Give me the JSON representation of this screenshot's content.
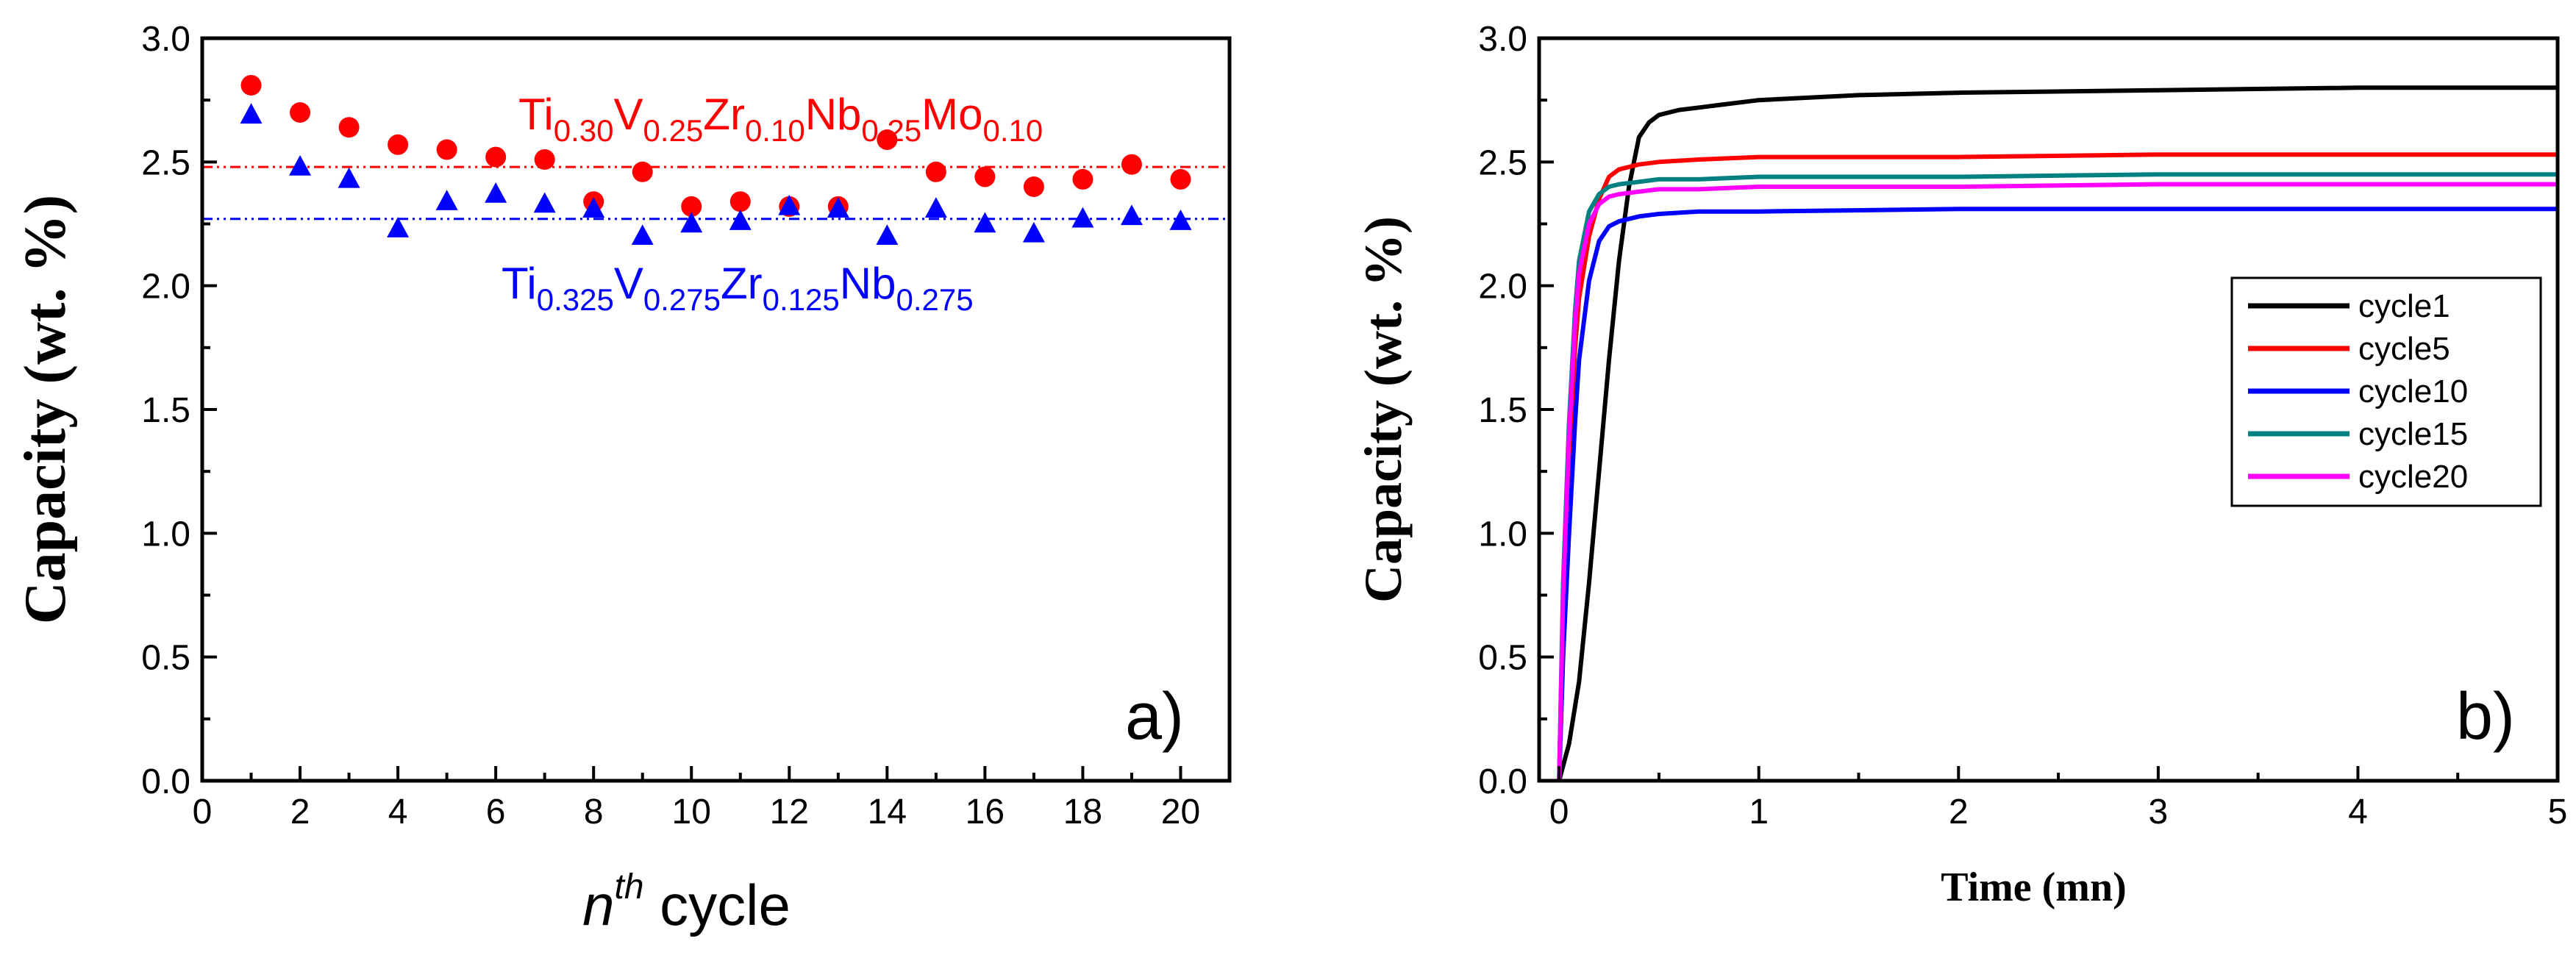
{
  "chart_data": [
    {
      "type": "scatter",
      "panel_label": "a)",
      "xlabel": "cycle",
      "xlabel_prefix": "n",
      "xlabel_sup": "th",
      "ylabel": "Capacity (wt. %)",
      "xlim": [
        0,
        21
      ],
      "ylim": [
        0,
        3.0
      ],
      "xticks": [
        0,
        2,
        4,
        6,
        8,
        10,
        12,
        14,
        16,
        18,
        20
      ],
      "yticks": [
        0.0,
        0.5,
        1.0,
        1.5,
        2.0,
        2.5,
        3.0
      ],
      "series": [
        {
          "name": "Ti0.30V0.25Zr0.10Nb0.25Mo0.10",
          "color": "#ff0000",
          "marker": "circle",
          "x": [
            1,
            2,
            3,
            4,
            5,
            6,
            7,
            8,
            9,
            10,
            11,
            12,
            13,
            14,
            15,
            16,
            17,
            18,
            19,
            20
          ],
          "y": [
            2.81,
            2.7,
            2.64,
            2.57,
            2.55,
            2.52,
            2.51,
            2.34,
            2.46,
            2.32,
            2.34,
            2.32,
            2.32,
            2.59,
            2.46,
            2.44,
            2.4,
            2.43,
            2.49,
            2.43
          ],
          "reference_line": 2.48,
          "label_parts": [
            {
              "text": "Ti",
              "sub": "0.30"
            },
            {
              "text": "V",
              "sub": "0.25"
            },
            {
              "text": "Zr",
              "sub": "0.10"
            },
            {
              "text": "Nb",
              "sub": "0.25"
            },
            {
              "text": "Mo",
              "sub": "0.10"
            }
          ]
        },
        {
          "name": "Ti0.325V0.275Zr0.125Nb0.275",
          "color": "#0000ff",
          "marker": "triangle",
          "x": [
            1,
            2,
            3,
            4,
            5,
            6,
            7,
            8,
            9,
            10,
            11,
            12,
            13,
            14,
            15,
            16,
            17,
            18,
            19,
            20
          ],
          "y": [
            2.69,
            2.48,
            2.43,
            2.23,
            2.34,
            2.37,
            2.33,
            2.31,
            2.2,
            2.25,
            2.26,
            2.32,
            2.31,
            2.2,
            2.31,
            2.25,
            2.21,
            2.27,
            2.28,
            2.26
          ],
          "reference_line": 2.27,
          "label_parts": [
            {
              "text": "Ti",
              "sub": "0.325"
            },
            {
              "text": "V",
              "sub": "0.275"
            },
            {
              "text": "Zr",
              "sub": "0.125"
            },
            {
              "text": "Nb",
              "sub": "0.275"
            }
          ]
        }
      ]
    },
    {
      "type": "line",
      "panel_label": "b)",
      "xlabel": "Time (mn)",
      "ylabel": "Capacity (wt. %)",
      "xlim": [
        -0.1,
        5
      ],
      "ylim": [
        0,
        3.0
      ],
      "xticks": [
        0,
        1,
        2,
        3,
        4,
        5
      ],
      "yticks": [
        0.0,
        0.5,
        1.0,
        1.5,
        2.0,
        2.5,
        3.0
      ],
      "legend_position": "right-center",
      "series": [
        {
          "name": "cycle1",
          "color": "#000000",
          "x": [
            0,
            0.05,
            0.1,
            0.15,
            0.2,
            0.25,
            0.3,
            0.35,
            0.4,
            0.45,
            0.5,
            0.6,
            0.7,
            0.8,
            1.0,
            1.5,
            2.0,
            3.0,
            4.0,
            5.0
          ],
          "y": [
            0,
            0.15,
            0.4,
            0.8,
            1.25,
            1.7,
            2.1,
            2.4,
            2.6,
            2.66,
            2.69,
            2.71,
            2.72,
            2.73,
            2.75,
            2.77,
            2.78,
            2.79,
            2.8,
            2.8
          ]
        },
        {
          "name": "cycle5",
          "color": "#ff0000",
          "x": [
            0,
            0.02,
            0.05,
            0.08,
            0.1,
            0.15,
            0.2,
            0.25,
            0.3,
            0.35,
            0.4,
            0.5,
            0.7,
            1.0,
            2.0,
            3.0,
            4.0,
            5.0
          ],
          "y": [
            0,
            0.7,
            1.3,
            1.75,
            1.95,
            2.2,
            2.35,
            2.44,
            2.47,
            2.48,
            2.49,
            2.5,
            2.51,
            2.52,
            2.52,
            2.53,
            2.53,
            2.53
          ]
        },
        {
          "name": "cycle10",
          "color": "#0000ff",
          "x": [
            0,
            0.02,
            0.05,
            0.08,
            0.1,
            0.15,
            0.2,
            0.25,
            0.3,
            0.4,
            0.5,
            0.7,
            1.0,
            2.0,
            3.0,
            4.0,
            5.0
          ],
          "y": [
            0,
            0.5,
            1.0,
            1.45,
            1.7,
            2.02,
            2.18,
            2.24,
            2.26,
            2.28,
            2.29,
            2.3,
            2.3,
            2.31,
            2.31,
            2.31,
            2.31
          ]
        },
        {
          "name": "cycle15",
          "color": "#008080",
          "x": [
            0,
            0.02,
            0.05,
            0.08,
            0.1,
            0.15,
            0.2,
            0.25,
            0.3,
            0.4,
            0.5,
            0.7,
            1.0,
            2.0,
            3.0,
            4.0,
            5.0
          ],
          "y": [
            0,
            0.8,
            1.45,
            1.9,
            2.1,
            2.3,
            2.37,
            2.4,
            2.41,
            2.42,
            2.43,
            2.43,
            2.44,
            2.44,
            2.45,
            2.45,
            2.45
          ]
        },
        {
          "name": "cycle20",
          "color": "#ff00ff",
          "x": [
            0,
            0.02,
            0.05,
            0.08,
            0.1,
            0.15,
            0.2,
            0.25,
            0.3,
            0.4,
            0.5,
            0.7,
            1.0,
            2.0,
            3.0,
            4.0,
            5.0
          ],
          "y": [
            0,
            0.75,
            1.4,
            1.85,
            2.05,
            2.25,
            2.33,
            2.36,
            2.37,
            2.38,
            2.39,
            2.39,
            2.4,
            2.4,
            2.41,
            2.41,
            2.41
          ]
        }
      ]
    }
  ]
}
